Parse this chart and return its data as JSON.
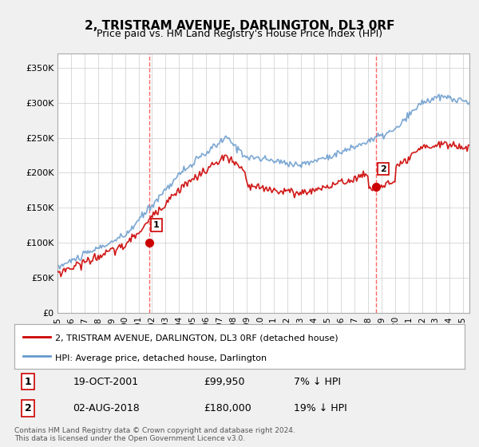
{
  "title": "2, TRISTRAM AVENUE, DARLINGTON, DL3 0RF",
  "subtitle": "Price paid vs. HM Land Registry's House Price Index (HPI)",
  "ylabel_ticks": [
    "£0",
    "£50K",
    "£100K",
    "£150K",
    "£200K",
    "£250K",
    "£300K",
    "£350K"
  ],
  "ytick_values": [
    0,
    50000,
    100000,
    150000,
    200000,
    250000,
    300000,
    350000
  ],
  "ylim": [
    0,
    370000
  ],
  "xlim_start": 1995.0,
  "xlim_end": 2025.5,
  "xtick_years": [
    1995,
    1996,
    1997,
    1998,
    1999,
    2000,
    2001,
    2002,
    2003,
    2004,
    2005,
    2006,
    2007,
    2008,
    2009,
    2010,
    2011,
    2012,
    2013,
    2014,
    2015,
    2016,
    2017,
    2018,
    2019,
    2020,
    2021,
    2022,
    2023,
    2024,
    2025
  ],
  "purchase1_x": 2001.8,
  "purchase1_y": 99950,
  "purchase1_label": "1",
  "purchase1_date": "19-OCT-2001",
  "purchase1_price": "£99,950",
  "purchase1_hpi": "7% ↓ HPI",
  "purchase2_x": 2018.58,
  "purchase2_y": 180000,
  "purchase2_label": "2",
  "purchase2_date": "02-AUG-2018",
  "purchase2_price": "£180,000",
  "purchase2_hpi": "19% ↓ HPI",
  "line_red_color": "#cc0000",
  "line_blue_color": "#6699cc",
  "vline_color": "#ff6666",
  "dot_color": "#cc0000",
  "legend_label_red": "2, TRISTRAM AVENUE, DARLINGTON, DL3 0RF (detached house)",
  "legend_label_blue": "HPI: Average price, detached house, Darlington",
  "footer": "Contains HM Land Registry data © Crown copyright and database right 2024.\nThis data is licensed under the Open Government Licence v3.0.",
  "background_color": "#f0f0f0",
  "plot_background": "#ffffff"
}
